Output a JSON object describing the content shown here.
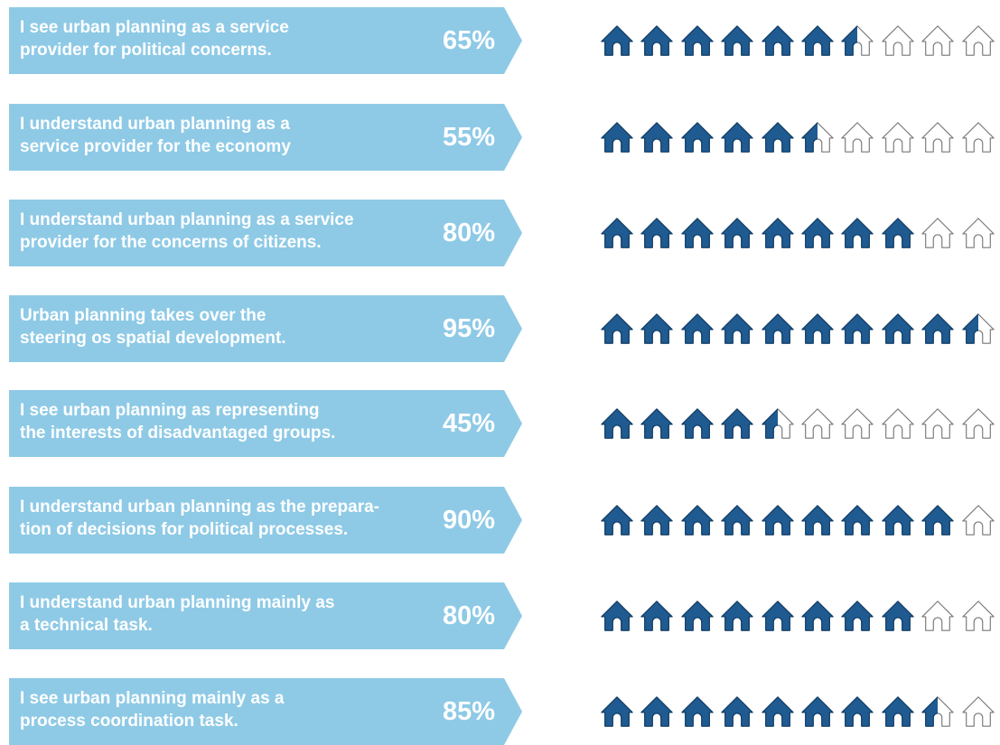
{
  "colors": {
    "banner": "#8ecae6",
    "text": "#ffffff",
    "house_fill": "#1f5b91",
    "house_outline": "#777777"
  },
  "icon": "house-icon",
  "chart_data": {
    "type": "pictograph",
    "units_per_row": 10,
    "unit_value_percent": 10,
    "categories": [
      "I see urban planning as a service provider for political concerns.",
      "I understand urban planning as a service provider for the economy",
      "I understand urban planning as a service provider for the concerns of citizens.",
      "Urban planning takes over the steering os spatial development.",
      "I see urban planning as representing the interests of disadvantaged groups.",
      "I understand urban planning as the prepara-tion of decisions for political processes.",
      "I understand urban planning mainly as a technical task.",
      "I see urban planning mainly as a process coordination task."
    ],
    "values": [
      65,
      55,
      80,
      95,
      45,
      90,
      80,
      85
    ]
  },
  "rows": [
    {
      "line1": "I see urban planning as a service",
      "line2": "provider for political concerns.",
      "pct_label": "65%"
    },
    {
      "line1": "I understand urban planning as a",
      "line2": "service provider for the economy",
      "pct_label": "55%"
    },
    {
      "line1": "I understand urban planning as a service",
      "line2": "provider for the concerns of citizens.",
      "pct_label": "80%"
    },
    {
      "line1": "Urban planning takes over the",
      "line2": "steering os spatial development.",
      "pct_label": "95%"
    },
    {
      "line1": "I see urban planning as representing",
      "line2": "the interests of disadvantaged groups.",
      "pct_label": "45%"
    },
    {
      "line1": "I understand urban planning as the prepara-",
      "line2": "tion of decisions for political processes.",
      "pct_label": "90%"
    },
    {
      "line1": "I understand urban planning mainly as",
      "line2": "a technical task.",
      "pct_label": "80%"
    },
    {
      "line1": "I see urban planning mainly as a",
      "line2": "process coordination task.",
      "pct_label": "85%"
    }
  ]
}
